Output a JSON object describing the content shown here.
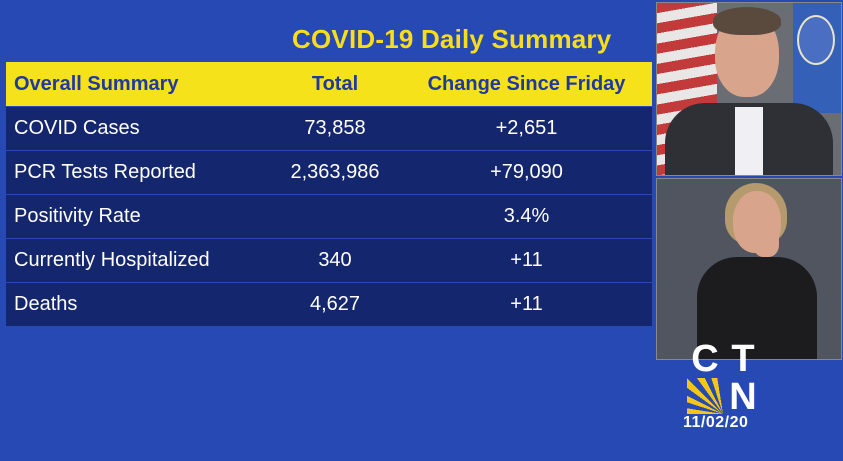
{
  "title": "COVID-19 Daily Summary",
  "table": {
    "headers": [
      "Overall Summary",
      "Total",
      "Change Since Friday"
    ],
    "rows": [
      {
        "label": "COVID Cases",
        "total": "73,858",
        "change": "+2,651"
      },
      {
        "label": "PCR Tests Reported",
        "total": "2,363,986",
        "change": "+79,090"
      },
      {
        "label": "Positivity Rate",
        "total": "",
        "change": "3.4%"
      },
      {
        "label": "Currently Hospitalized",
        "total": "340",
        "change": "+11"
      },
      {
        "label": "Deaths",
        "total": "4,627",
        "change": "+11"
      }
    ]
  },
  "logo": {
    "letters": [
      "C",
      "T",
      "N"
    ]
  },
  "date": "11/02/20",
  "colors": {
    "background": "#2749b3",
    "title": "#f7dd1a",
    "header_bg": "#f5e21b",
    "row_bg": "#13266e"
  }
}
